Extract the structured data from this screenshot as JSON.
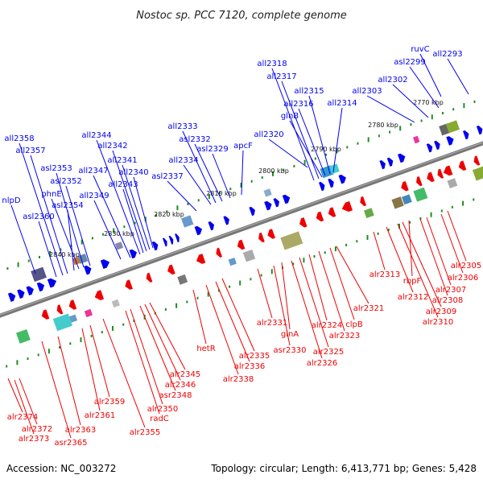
{
  "title": "Nostoc sp. PCC 7120, complete genome",
  "footer": {
    "accession": "Accession: NC_003272",
    "summary": "Topology: circular; Length: 6,413,771 bp; Genes: 5,428"
  },
  "colors": {
    "forward": "#0000ee",
    "reverse": "#ee0000",
    "backbone": "#777777",
    "tick": "#1f8f1f"
  },
  "scale_labels": [
    "2770 kbp",
    "2780 kbp",
    "2790 kbp",
    "2800 kbp",
    "2810 kbp",
    "2820 kbp",
    "2830 kbp",
    "2840 kbp"
  ],
  "forward_genes": [
    "all2293",
    "ruvC",
    "asl2299",
    "all2302",
    "all2303",
    "all2314",
    "all2315",
    "all2316",
    "glnB",
    "all2317",
    "all2318",
    "all2320",
    "apcF",
    "asl2329",
    "asl2332",
    "all2333",
    "all2334",
    "asl2337",
    "all2340",
    "all2341",
    "all2342",
    "all2343",
    "all2344",
    "all2347",
    "all2349",
    "asl2352",
    "asl2353",
    "phnE",
    "asl2354",
    "all2357",
    "all2358",
    "nlpD",
    "asl2360"
  ],
  "reverse_genes": [
    "alr2305",
    "alr2306",
    "alr2307",
    "alr2308",
    "rbpF",
    "alr2309",
    "alr2310",
    "alr2312",
    "alr2313",
    "alr2321",
    "clpB",
    "alr2323",
    "alr2324",
    "alr2325",
    "alr2326",
    "glnA",
    "asr2330",
    "alr2331",
    "alr2335",
    "alr2336",
    "alr2338",
    "hetR",
    "alr2345",
    "alr2346",
    "asr2348",
    "alr2350",
    "radC",
    "alr2355",
    "alr2359",
    "alr2361",
    "alr2363",
    "asr2365",
    "alr2372",
    "alr2373",
    "alr2374"
  ]
}
